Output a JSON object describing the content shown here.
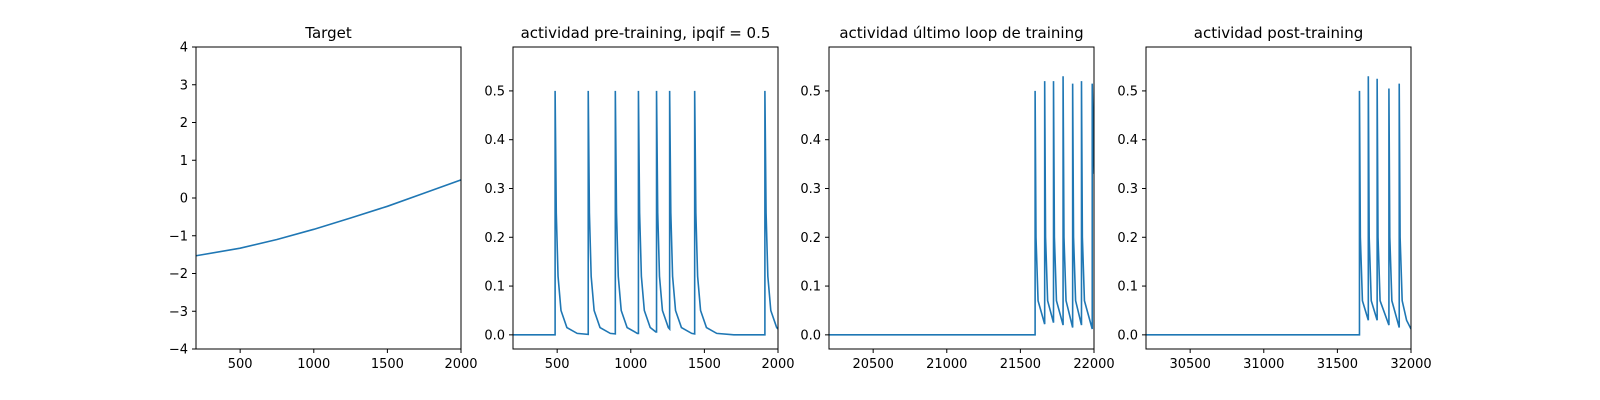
{
  "chart_data": [
    {
      "type": "line",
      "title": "Target",
      "color": "#1f77b4",
      "x": [
        200,
        500,
        750,
        1000,
        1250,
        1500,
        1750,
        2000
      ],
      "values": [
        -1.53,
        -1.33,
        -1.1,
        -0.83,
        -0.53,
        -0.22,
        0.13,
        0.48
      ],
      "xlim": [
        200,
        2000
      ],
      "xticks": [
        500,
        1000,
        1500,
        2000
      ],
      "ylim": [
        -4,
        4
      ],
      "yticks": [
        {
          "value": -4,
          "label": "−4"
        },
        {
          "value": -3,
          "label": "−3"
        },
        {
          "value": -2,
          "label": "−2"
        },
        {
          "value": -1,
          "label": "−1"
        },
        0,
        1,
        2,
        3,
        4
      ]
    },
    {
      "type": "line",
      "title": "actividad pre-training, ipqif = 0.5",
      "color": "#1f77b4",
      "x": [
        200,
        486,
        486,
        494,
        506,
        526,
        566,
        636,
        711,
        711,
        719,
        731,
        751,
        791,
        861,
        895,
        895,
        903,
        915,
        935,
        975,
        1045,
        1052,
        1052,
        1060,
        1072,
        1092,
        1132,
        1170,
        1175,
        1175,
        1183,
        1195,
        1215,
        1255,
        1264,
        1264,
        1272,
        1284,
        1304,
        1344,
        1414,
        1434,
        1434,
        1442,
        1454,
        1474,
        1514,
        1584,
        1700,
        1911,
        1911,
        1919,
        1931,
        1951,
        1991,
        2000
      ],
      "values": [
        0,
        0,
        0.5,
        0.25,
        0.12,
        0.05,
        0.015,
        0.003,
        0.001,
        0.5,
        0.25,
        0.12,
        0.05,
        0.015,
        0.003,
        0.002,
        0.5,
        0.25,
        0.12,
        0.05,
        0.015,
        0.003,
        0.003,
        0.5,
        0.25,
        0.12,
        0.05,
        0.015,
        0.006,
        0.006,
        0.5,
        0.25,
        0.12,
        0.05,
        0.015,
        0.012,
        0.5,
        0.25,
        0.12,
        0.05,
        0.015,
        0.003,
        0.002,
        0.5,
        0.25,
        0.12,
        0.05,
        0.015,
        0.003,
        0,
        0,
        0.5,
        0.25,
        0.12,
        0.05,
        0.015,
        0.012
      ],
      "xlim": [
        200,
        2000
      ],
      "xticks": [
        500,
        1000,
        1500,
        2000
      ],
      "ylim": [
        -0.029,
        0.59
      ],
      "yticks": [
        {
          "value": 0,
          "label": "0.0"
        },
        0.1,
        0.2,
        0.3,
        0.4,
        0.5
      ]
    },
    {
      "type": "line",
      "title": "actividad último loop de training",
      "color": "#1f77b4",
      "x": [
        20200,
        21600,
        21600,
        21606,
        21620,
        21665,
        21665,
        21671,
        21685,
        21725,
        21725,
        21731,
        21745,
        21790,
        21790,
        21796,
        21810,
        21855,
        21855,
        21861,
        21875,
        21915,
        21915,
        21921,
        21935,
        21988,
        21988,
        22000
      ],
      "values": [
        0,
        0,
        0.5,
        0.2,
        0.07,
        0.022,
        0.52,
        0.2,
        0.07,
        0.025,
        0.52,
        0.2,
        0.07,
        0.02,
        0.53,
        0.2,
        0.07,
        0.015,
        0.515,
        0.2,
        0.07,
        0.02,
        0.52,
        0.2,
        0.07,
        0.012,
        0.515,
        0.33
      ],
      "xlim": [
        20200,
        22000
      ],
      "xticks": [
        20500,
        21000,
        21500,
        22000
      ],
      "ylim": [
        -0.029,
        0.59
      ],
      "yticks": [
        {
          "value": 0,
          "label": "0.0"
        },
        0.1,
        0.2,
        0.3,
        0.4,
        0.5
      ]
    },
    {
      "type": "line",
      "title": "actividad post-training",
      "color": "#1f77b4",
      "x": [
        30200,
        31650,
        31650,
        31656,
        31670,
        31710,
        31710,
        31716,
        31730,
        31770,
        31770,
        31776,
        31790,
        31850,
        31850,
        31856,
        31870,
        31920,
        31920,
        31926,
        31940,
        31970,
        32000
      ],
      "values": [
        0,
        0,
        0.5,
        0.2,
        0.07,
        0.03,
        0.53,
        0.2,
        0.07,
        0.03,
        0.525,
        0.2,
        0.07,
        0.02,
        0.505,
        0.2,
        0.07,
        0.015,
        0.515,
        0.2,
        0.07,
        0.03,
        0.012
      ],
      "xlim": [
        30200,
        32000
      ],
      "xticks": [
        30500,
        31000,
        31500,
        32000
      ],
      "ylim": [
        -0.029,
        0.59
      ],
      "yticks": [
        {
          "value": 0,
          "label": "0.0"
        },
        0.1,
        0.2,
        0.3,
        0.4,
        0.5
      ]
    }
  ]
}
